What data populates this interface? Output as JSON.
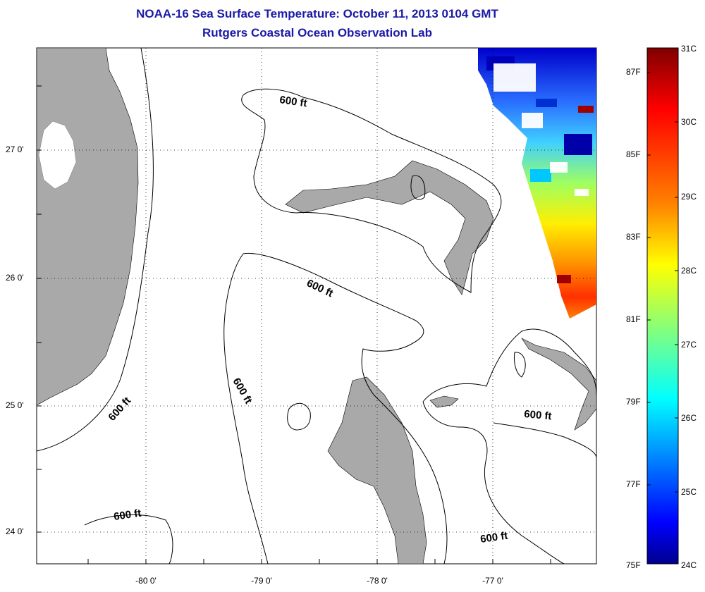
{
  "title": {
    "line1": "NOAA-16 Sea Surface Temperature:  October 11, 2013 0104 GMT",
    "line2": "Rutgers Coastal Ocean Observation Lab"
  },
  "axes": {
    "lat_labels": [
      "27 0'",
      "26 0'",
      "25 0'",
      "24 0'"
    ],
    "lon_labels": [
      "-80 0'",
      "-79 0'",
      "-78 0'",
      "-77 0'"
    ],
    "grid": "dotted"
  },
  "isobath_labels": [
    "600 ft",
    "600 ft",
    "600 ft",
    "600 ft",
    "600 ft",
    "600 ft"
  ],
  "colorbar": {
    "fahrenheit": [
      "87F",
      "85F",
      "83F",
      "81F",
      "79F",
      "77F",
      "75F"
    ],
    "celsius": [
      "31C",
      "30C",
      "29C",
      "28C",
      "27C",
      "26C",
      "25C",
      "24C"
    ],
    "colormap": [
      "#7f0000",
      "#ff0000",
      "#ff8000",
      "#ffff00",
      "#80ff80",
      "#00ffff",
      "#0080ff",
      "#0000ff",
      "#00008f"
    ]
  },
  "colors": {
    "land": "#a9a9a9",
    "title": "#1a1aa6"
  }
}
